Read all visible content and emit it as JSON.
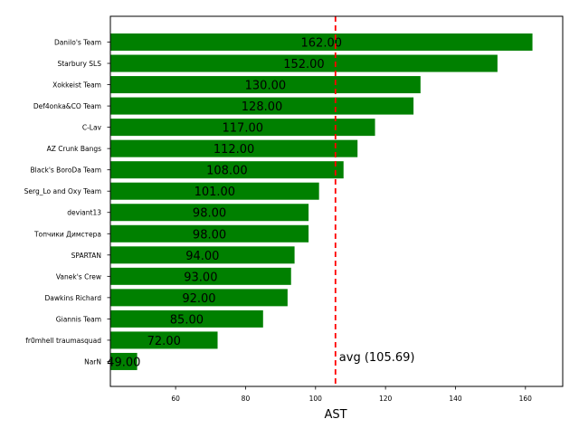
{
  "chart_data": {
    "type": "bar",
    "orientation": "horizontal",
    "categories": [
      "Danilo's Team",
      "Starbury SLS",
      "Xokkeist Team",
      "Def4onka&CO Team",
      "C-Lav",
      "AZ Crunk Bangs",
      "Black's BoroDa Team",
      "Serg_Lo and Oxy Team",
      "deviant13",
      "Топчики Димстера",
      "SPARTAN",
      "Vanek's Crew",
      "Dawkins Richard",
      "Giannis Team",
      "fr0mhell traumasquad",
      "NarN"
    ],
    "values": [
      162,
      152,
      130,
      128,
      117,
      112,
      108,
      101,
      98,
      98,
      94,
      93,
      92,
      85,
      72,
      49
    ],
    "value_labels": [
      "162.00",
      "152.00",
      "130.00",
      "128.00",
      "117.00",
      "112.00",
      "108.00",
      "101.00",
      "98.00",
      "98.00",
      "94.00",
      "93.00",
      "92.00",
      "85.00",
      "72.00",
      "49.00"
    ],
    "xlabel": "AST",
    "ylabel": "",
    "xlim": [
      41.35,
      170.65
    ],
    "xticks": [
      60,
      80,
      100,
      120,
      140,
      160
    ],
    "bar_color": "#008000",
    "reference_line": {
      "value": 105.69,
      "label": "avg (105.69)",
      "color": "#ff0000",
      "style": "dashed"
    },
    "grid": false,
    "legend": "none"
  }
}
